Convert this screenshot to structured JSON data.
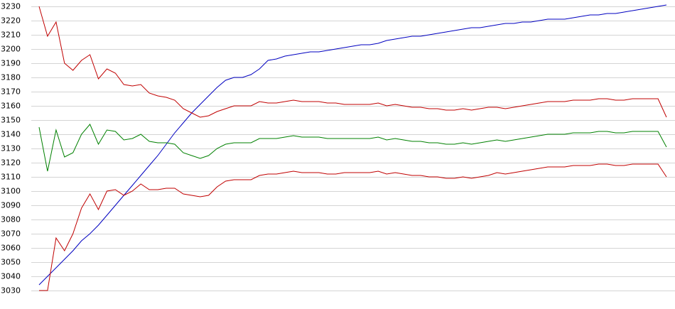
{
  "chart_data": {
    "type": "line",
    "categories": [
      null,
      null,
      null,
      null,
      null,
      null,
      null,
      null,
      null,
      null,
      null,
      null,
      null,
      null,
      null,
      null,
      null,
      null,
      null,
      null,
      null,
      null,
      null,
      null,
      null,
      null,
      null,
      null,
      null,
      null,
      null,
      null,
      null,
      null,
      null,
      null,
      null,
      null,
      null,
      null,
      null,
      null,
      null,
      null,
      null,
      null,
      null,
      null,
      null,
      null,
      null,
      null,
      null,
      null,
      null,
      null,
      null,
      null,
      null,
      null,
      null,
      null,
      null,
      null,
      null,
      null,
      null,
      null,
      null,
      null,
      null,
      null,
      null,
      null,
      null
    ],
    "series": [
      {
        "color": "#0000c0",
        "values": [
          3034,
          3040,
          3046,
          3052,
          3058,
          3065,
          3070,
          3076,
          3083,
          3090,
          3097,
          3104,
          3111,
          3118,
          3125,
          3133,
          3141,
          3148,
          3155,
          3161,
          3167,
          3173,
          3178,
          3180,
          3180,
          3182,
          3186,
          3192,
          3193,
          3195,
          3196,
          3197,
          3198,
          3198,
          3199,
          3200,
          3201,
          3202,
          3203,
          3203,
          3204,
          3206,
          3207,
          3208,
          3209,
          3209,
          3210,
          3211,
          3212,
          3213,
          3214,
          3215,
          3215,
          3216,
          3217,
          3218,
          3218,
          3219,
          3219,
          3220,
          3221,
          3221,
          3221,
          3222,
          3223,
          3224,
          3224,
          3225,
          3225,
          3226,
          3227,
          3228,
          3229,
          3230,
          3231
        ]
      },
      {
        "color": "#c00000",
        "values": [
          3230,
          3209,
          3219,
          3190,
          3185,
          3192,
          3196,
          3179,
          3186,
          3183,
          3175,
          3174,
          3175,
          3169,
          3167,
          3166,
          3164,
          3158,
          3155,
          3152,
          3153,
          3156,
          3158,
          3160,
          3160,
          3160,
          3163,
          3162,
          3162,
          3163,
          3164,
          3163,
          3163,
          3163,
          3162,
          3162,
          3161,
          3161,
          3161,
          3161,
          3162,
          3160,
          3161,
          3160,
          3159,
          3159,
          3158,
          3158,
          3157,
          3157,
          3158,
          3157,
          3158,
          3159,
          3159,
          3158,
          3159,
          3160,
          3161,
          3162,
          3163,
          3163,
          3163,
          3164,
          3164,
          3164,
          3165,
          3165,
          3164,
          3164,
          3165,
          3165,
          3165,
          3165,
          3152
        ]
      },
      {
        "color": "#008000",
        "values": [
          3145,
          3114,
          3143,
          3124,
          3127,
          3140,
          3147,
          3133,
          3143,
          3142,
          3136,
          3137,
          3140,
          3135,
          3134,
          3134,
          3133,
          3127,
          3125,
          3123,
          3125,
          3130,
          3133,
          3134,
          3134,
          3134,
          3137,
          3137,
          3137,
          3138,
          3139,
          3138,
          3138,
          3138,
          3137,
          3137,
          3137,
          3137,
          3137,
          3137,
          3138,
          3136,
          3137,
          3136,
          3135,
          3135,
          3134,
          3134,
          3133,
          3133,
          3134,
          3133,
          3134,
          3135,
          3136,
          3135,
          3136,
          3137,
          3138,
          3139,
          3140,
          3140,
          3140,
          3141,
          3141,
          3141,
          3142,
          3142,
          3141,
          3141,
          3142,
          3142,
          3142,
          3142,
          3131
        ]
      },
      {
        "color": "#c00000",
        "values": [
          3030,
          3030,
          3067,
          3058,
          3070,
          3088,
          3098,
          3087,
          3100,
          3101,
          3097,
          3100,
          3105,
          3101,
          3101,
          3102,
          3102,
          3098,
          3097,
          3096,
          3097,
          3103,
          3107,
          3108,
          3108,
          3108,
          3111,
          3112,
          3112,
          3113,
          3114,
          3113,
          3113,
          3113,
          3112,
          3112,
          3113,
          3113,
          3113,
          3113,
          3114,
          3112,
          3113,
          3112,
          3111,
          3111,
          3110,
          3110,
          3109,
          3109,
          3110,
          3109,
          3110,
          3111,
          3113,
          3112,
          3113,
          3114,
          3115,
          3116,
          3117,
          3117,
          3117,
          3118,
          3118,
          3118,
          3119,
          3119,
          3118,
          3118,
          3119,
          3119,
          3119,
          3119,
          3110
        ]
      }
    ],
    "ylim": [
      3030,
      3230
    ],
    "yticks": [
      3030,
      3040,
      3050,
      3060,
      3070,
      3080,
      3090,
      3100,
      3110,
      3120,
      3130,
      3140,
      3150,
      3160,
      3170,
      3180,
      3190,
      3200,
      3210,
      3220,
      3230
    ],
    "grid": true
  }
}
